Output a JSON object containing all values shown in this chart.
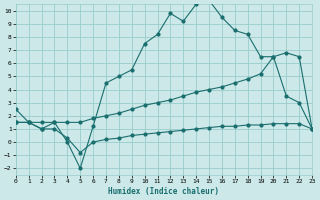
{
  "xlabel": "Humidex (Indice chaleur)",
  "bg_color": "#cce8e8",
  "grid_color": "#99cccc",
  "line_color": "#1a6e6e",
  "xlim": [
    0,
    23
  ],
  "ylim": [
    -2.5,
    10.5
  ],
  "yticks": [
    -2,
    -1,
    0,
    1,
    2,
    3,
    4,
    5,
    6,
    7,
    8,
    9,
    10
  ],
  "xticks": [
    0,
    1,
    2,
    3,
    4,
    5,
    6,
    7,
    8,
    9,
    10,
    11,
    12,
    13,
    14,
    15,
    16,
    17,
    18,
    19,
    20,
    21,
    22,
    23
  ],
  "s1x": [
    0,
    1,
    2,
    3,
    4,
    5,
    6,
    7,
    8,
    9,
    10,
    11,
    12,
    13,
    14,
    15,
    16,
    17,
    18,
    19,
    20,
    21,
    22,
    23
  ],
  "s1y": [
    2.5,
    1.5,
    1.0,
    1.5,
    0.0,
    -2.0,
    1.2,
    4.5,
    5.0,
    5.5,
    7.5,
    8.2,
    9.8,
    9.2,
    10.5,
    10.8,
    9.5,
    8.5,
    8.2,
    6.5,
    6.5,
    3.5,
    3.0,
    1.0
  ],
  "s2x": [
    0,
    1,
    2,
    3,
    4,
    5,
    6,
    7,
    8,
    9,
    10,
    11,
    12,
    13,
    14,
    15,
    16,
    17,
    18,
    19,
    20,
    21,
    22,
    23
  ],
  "s2y": [
    1.5,
    1.5,
    1.5,
    1.5,
    1.5,
    1.5,
    1.8,
    2.0,
    2.2,
    2.5,
    2.8,
    3.0,
    3.2,
    3.5,
    3.8,
    4.0,
    4.2,
    4.5,
    4.8,
    5.2,
    6.5,
    6.8,
    6.5,
    1.0
  ],
  "s3x": [
    0,
    1,
    2,
    3,
    4,
    5,
    6,
    7,
    8,
    9,
    10,
    11,
    12,
    13,
    14,
    15,
    16,
    17,
    18,
    19,
    20,
    21,
    22,
    23
  ],
  "s3y": [
    1.5,
    1.5,
    1.0,
    1.0,
    0.3,
    -0.8,
    0.0,
    0.2,
    0.3,
    0.5,
    0.6,
    0.7,
    0.8,
    0.9,
    1.0,
    1.1,
    1.2,
    1.2,
    1.3,
    1.3,
    1.4,
    1.4,
    1.4,
    1.0
  ]
}
